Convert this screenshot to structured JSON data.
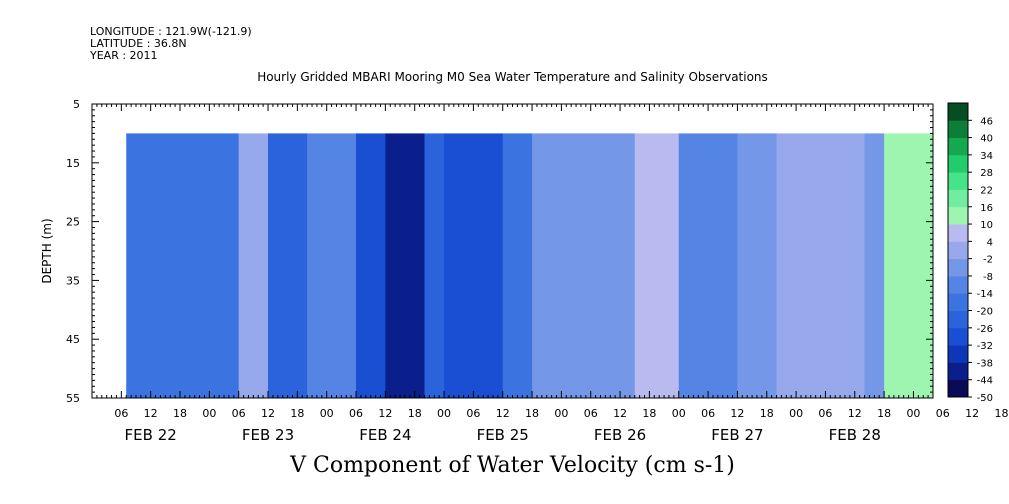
{
  "header": {
    "longitude": "LONGITUDE : 121.9W(-121.9)",
    "latitude": "LATITUDE : 36.8N",
    "year": "YEAR : 2011"
  },
  "title": "Hourly Gridded MBARI Mooring M0 Sea Water Temperature and Salinity Observations",
  "variable_title": "V Component of Water Velocity (cm s-1)",
  "chart_data": {
    "type": "heatmap",
    "ylabel": "DEPTH (m)",
    "ylim": [
      5,
      55
    ],
    "y_inverted": true,
    "y_ticks": [
      5,
      15,
      25,
      35,
      45,
      55
    ],
    "x_hour_ticks": [
      "06",
      "12",
      "18",
      "00",
      "06",
      "12",
      "18",
      "00",
      "06",
      "12",
      "18",
      "00",
      "06",
      "12",
      "18",
      "00",
      "06",
      "12",
      "18",
      "00",
      "06",
      "12",
      "18",
      "00",
      "06",
      "12",
      "18",
      "00",
      "06",
      "12",
      "18",
      "00"
    ],
    "x_day_labels": [
      "FEB 22",
      "FEB 23",
      "FEB 24",
      "FEB 25",
      "FEB 26",
      "FEB 27",
      "FEB 28"
    ],
    "x_start": "2011-02-22 00:00",
    "x_end": "2011-03-01 04:00",
    "data_start": "2011-02-22 07:00",
    "data_depth_range": [
      10,
      55
    ],
    "colorbar_levels": [
      -50,
      -44,
      -38,
      -32,
      -26,
      -20,
      -14,
      -8,
      -2,
      4,
      10,
      16,
      22,
      28,
      34,
      40,
      46
    ],
    "colorbar_labels": [
      "46",
      "40",
      "34",
      "28",
      "22",
      "16",
      "10",
      "4",
      "-2",
      "-8",
      "-14",
      "-20",
      "-26",
      "-32",
      "-38",
      "-44",
      "-50"
    ],
    "columns": [
      {
        "time": "2011-02-22 07:00",
        "v": -20
      },
      {
        "time": "2011-02-22 18:00",
        "v": -18
      },
      {
        "time": "2011-02-23 06:00",
        "v": 2
      },
      {
        "time": "2011-02-23 12:00",
        "v": -24
      },
      {
        "time": "2011-02-23 20:00",
        "v": -12
      },
      {
        "time": "2011-02-24 06:00",
        "v": -28
      },
      {
        "time": "2011-02-24 12:00",
        "v": -44
      },
      {
        "time": "2011-02-24 20:00",
        "v": -26
      },
      {
        "time": "2011-02-25 00:00",
        "v": -30
      },
      {
        "time": "2011-02-25 12:00",
        "v": -16
      },
      {
        "time": "2011-02-25 18:00",
        "v": -4
      },
      {
        "time": "2011-02-26 06:00",
        "v": -4
      },
      {
        "time": "2011-02-26 15:00",
        "v": 4
      },
      {
        "time": "2011-02-27 00:00",
        "v": -10
      },
      {
        "time": "2011-02-27 12:00",
        "v": -6
      },
      {
        "time": "2011-02-27 20:00",
        "v": 2
      },
      {
        "time": "2011-02-28 06:00",
        "v": -2
      },
      {
        "time": "2011-02-28 14:00",
        "v": -8
      },
      {
        "time": "2011-02-28 18:00",
        "v": 12
      },
      {
        "time": "2011-03-01 04:00",
        "v": 14
      }
    ]
  },
  "colors": {
    "colormap": [
      "#0a0a55",
      "#0a1f8c",
      "#0d37b8",
      "#1a4fd4",
      "#2a63dc",
      "#3b74e0",
      "#5585e4",
      "#7597e8",
      "#98a8ec",
      "#b8baf0",
      "#9df5b0",
      "#70eda0",
      "#45e48a",
      "#22cc6a",
      "#14a84f",
      "#0b7f39",
      "#064d22"
    ],
    "background": "#ffffff",
    "frame": "#000000"
  }
}
